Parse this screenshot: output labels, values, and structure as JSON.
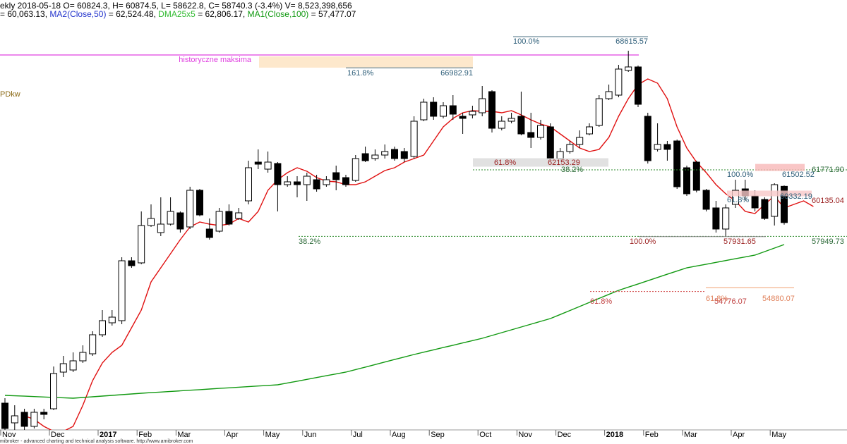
{
  "chart_data": {
    "type": "candlestick",
    "header": "ekly 2018-05-18 O= 60824.3, H= 60874.5, L= 58622.8, C= 58740.3 (-3.4%) V= 8,523,398,656",
    "legend_items": [
      {
        "text": "= 60,063.13, ",
        "color": "#000000"
      },
      {
        "text": "MA2(Close,50)",
        "color": "#2233cc"
      },
      {
        "text": " = 62,524.48, ",
        "color": "#000000"
      },
      {
        "text": "DMA25x5",
        "color": "#33bb33"
      },
      {
        "text": " = 62,806.17, ",
        "color": "#000000"
      },
      {
        "text": "MA1(Close,100)",
        "color": "#119911"
      },
      {
        "text": " = 57,477.07",
        "color": "#000000"
      }
    ],
    "footer": "mibroker - advanced charting and technical analysis software. http://www.amibroker.com",
    "side_label": "PDkw",
    "historic_max_label": "historyczne maksima",
    "categories": [
      "Nov",
      null,
      null,
      null,
      null,
      "Dec",
      null,
      null,
      null,
      null,
      "2017",
      null,
      null,
      null,
      "Feb",
      null,
      null,
      null,
      "Mar",
      null,
      null,
      null,
      null,
      "Apr",
      null,
      null,
      null,
      "May",
      null,
      null,
      null,
      "Jun",
      null,
      null,
      null,
      null,
      "Jul",
      null,
      null,
      null,
      "Aug",
      null,
      null,
      null,
      "Sep",
      null,
      null,
      null,
      null,
      "Oct",
      null,
      null,
      null,
      "Nov",
      null,
      null,
      null,
      "Dec",
      null,
      null,
      null,
      null,
      "2018",
      null,
      null,
      null,
      "Feb",
      null,
      null,
      null,
      "Mar",
      null,
      null,
      null,
      null,
      "Apr",
      null,
      null,
      null,
      "May",
      null,
      null,
      null,
      null
    ],
    "open": [
      48364,
      47230,
      47838,
      47028,
      47838,
      48040,
      50146,
      50268,
      50794,
      51199,
      52293,
      52981,
      53103,
      56545,
      56424,
      58570,
      58165,
      58651,
      59299,
      58489,
      60595,
      58368,
      58246,
      59380,
      58975,
      59988,
      62215,
      61810,
      62134,
      60919,
      61081,
      60919,
      61203,
      60919,
      61608,
      61324,
      61162,
      62701,
      62418,
      62620,
      62944,
      62823,
      62539,
      64645,
      65658,
      64848,
      65455,
      64848,
      64929,
      65050,
      66265,
      64159,
      64564,
      64848,
      63916,
      63633,
      64240,
      62418,
      62823,
      63228,
      63835,
      64321,
      65860,
      66063,
      67480,
      67683,
      64848,
      62944,
      63228,
      63430,
      61891,
      62215,
      60595,
      59583,
      58368,
      59785,
      60676,
      60271,
      60069,
      59097,
      60824.3,
      null,
      null,
      null
    ],
    "high": [
      48648,
      48243,
      48040,
      48040,
      48040,
      50470,
      51078,
      51280,
      51685,
      52495,
      53710,
      53710,
      56748,
      56748,
      59380,
      59785,
      60190,
      60190,
      59380,
      60798,
      60676,
      58975,
      59583,
      59785,
      59583,
      62296,
      62944,
      62823,
      62215,
      61405,
      61405,
      61608,
      61486,
      61405,
      62013,
      61486,
      62620,
      63106,
      62944,
      63228,
      63106,
      63025,
      64848,
      65860,
      65941,
      65658,
      66063,
      65050,
      65455,
      66589,
      66346,
      64848,
      65050,
      66265,
      65050,
      64645,
      64443,
      63025,
      63430,
      64038,
      64443,
      66063,
      66670,
      67804,
      68615.57,
      67764,
      65050,
      64443,
      63430,
      63511,
      62013,
      62296,
      60676,
      59988,
      59785,
      61203,
      61203,
      60595,
      60190,
      61000,
      60874.5,
      null,
      null,
      null
    ],
    "low": [
      46825,
      46825,
      46825,
      46906,
      47432,
      47959,
      49863,
      50146,
      50673,
      51078,
      52171,
      52819,
      52900,
      56140,
      56343,
      58489,
      57963,
      58570,
      58165,
      58368,
      59097,
      57760,
      58165,
      58570,
      58894,
      59785,
      61810,
      61608,
      59380,
      60798,
      60190,
      59988,
      60514,
      60798,
      60595,
      60798,
      61081,
      62215,
      62296,
      62418,
      62296,
      62215,
      62418,
      64564,
      64645,
      64726,
      64645,
      63835,
      64726,
      64848,
      63916,
      64038,
      64443,
      63754,
      63025,
      63511,
      62296,
      62215,
      62701,
      63025,
      63754,
      64240,
      65779,
      65941,
      67399,
      65374,
      62134,
      62823,
      62296,
      60676,
      60271,
      60474,
      59380,
      58165,
      57931.65,
      59583,
      59988,
      59380,
      58894,
      58570,
      58622.8,
      null,
      null,
      null
    ],
    "close": [
      46906,
      47635,
      47028,
      47838,
      47716,
      50065,
      50632,
      50794,
      51280,
      52293,
      53103,
      53305,
      56545,
      56262,
      58570,
      58975,
      58651,
      59380,
      58368,
      60595,
      59178,
      57882,
      59380,
      58651,
      59299,
      61891,
      62094,
      62215,
      60919,
      61081,
      60919,
      61405,
      60676,
      61203,
      61203,
      60919,
      62418,
      62296,
      62620,
      62823,
      62418,
      62418,
      64564,
      65658,
      64848,
      65455,
      64969,
      64726,
      65131,
      65860,
      64159,
      64564,
      64726,
      63835,
      63633,
      64321,
      62418,
      62823,
      63228,
      63633,
      64240,
      65860,
      66265,
      67561,
      67683,
      65536,
      62296,
      63228,
      62944,
      60798,
      60393,
      60595,
      59502,
      58368,
      59583,
      60595,
      60271,
      59583,
      58975,
      60919,
      58740.3,
      null,
      null,
      null
    ],
    "up_color": "#ffffff",
    "down_color": "#000000",
    "series": [
      {
        "color": "#e01010",
        "values": [
          null,
          null,
          47635,
          47432,
          47028,
          46744,
          46744,
          47028,
          48243,
          49660,
          50673,
          51280,
          51685,
          52698,
          53710,
          55330,
          56140,
          56950,
          57760,
          58489,
          58773,
          58651,
          58570,
          58651,
          58975,
          58773,
          59380,
          60595,
          61203,
          61608,
          61891,
          61689,
          61324,
          61122,
          61081,
          60919,
          60919,
          61081,
          61405,
          61729,
          61891,
          62215,
          62418,
          62620,
          63430,
          64240,
          64726,
          65050,
          65172,
          65131,
          65131,
          65050,
          65172,
          64929,
          64645,
          64402,
          64240,
          63835,
          63430,
          63025,
          62823,
          62944,
          63633,
          64848,
          65860,
          66670,
          66994,
          66751,
          65860,
          64240,
          63025,
          62215,
          61608,
          60919,
          60393,
          59988,
          59380,
          59259,
          59785,
          60271,
          59583,
          59785,
          59988,
          59664
        ]
      },
      {
        "color": "#119911",
        "values": [
          48810,
          48787,
          48764,
          48741,
          48717,
          48694,
          48671,
          48648,
          48688,
          48729,
          48769,
          48810,
          48850,
          48891,
          48931,
          48966,
          49000,
          49035,
          49070,
          49105,
          49139,
          49174,
          49209,
          49243,
          49278,
          49313,
          49348,
          49382,
          49417,
          49521,
          49625,
          49729,
          49834,
          49938,
          50042,
          50146,
          50291,
          50435,
          50580,
          50725,
          50870,
          51014,
          51159,
          51292,
          51425,
          51558,
          51691,
          51824,
          51957,
          52090,
          52252,
          52414,
          52576,
          52738,
          52900,
          53062,
          53224,
          53455,
          53687,
          53918,
          54150,
          54381,
          54613,
          54844,
          55029,
          55214,
          55399,
          55585,
          55770,
          55955,
          56140,
          56244,
          56348,
          56452,
          56557,
          56661,
          56765,
          56869,
          57072,
          57274,
          57477.07,
          null,
          null,
          null
        ]
      }
    ],
    "ylim": [
      46825,
      71530
    ],
    "fib_levels": [
      {
        "pct": "100.0%",
        "price": 68615.57,
        "color": "#2f5f7a"
      },
      {
        "pct": "161.8%",
        "price": 66982.91,
        "color": "#2f5f7a"
      },
      {
        "pct": "61.8%",
        "price": 62153.29,
        "color": "#9b2020"
      },
      {
        "pct": "38.2%",
        "price": {
          "value": 61771.9,
          "label": "61771.90"
        },
        "color": "#2e6b3a"
      },
      {
        "pct": "100.0%",
        "price": 61502.52,
        "color": "#2f5f7a"
      },
      {
        "pct": "61.8%",
        "price": 60332.19,
        "color": "#2f5f7a"
      },
      {
        "pct": "38.2%",
        "price": 57949.73,
        "color": "#2e6b3a"
      },
      {
        "pct": "100.0%",
        "price": 57931.65,
        "color": "#9b2020"
      },
      {
        "pct": "61.8%",
        "price": 54776.07,
        "color": "#c04040"
      },
      {
        "pct": "61.8%",
        "price": 54880.07,
        "color": "#e0805a"
      }
    ],
    "last_value_label": 60135.04
  }
}
